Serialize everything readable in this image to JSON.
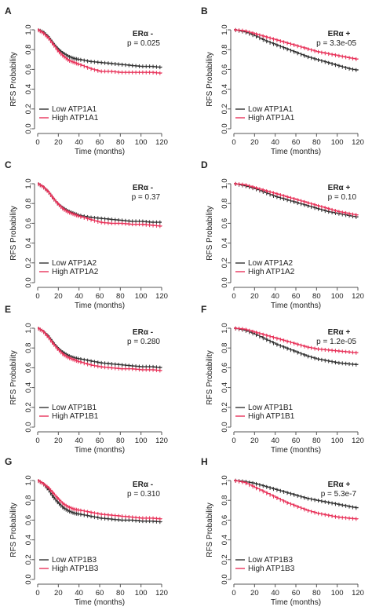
{
  "figure": {
    "colors": {
      "low": "#333333",
      "high": "#e8335a",
      "axis": "#555555"
    }
  },
  "chart_data": [
    {
      "type": "line",
      "panel": "A",
      "er_label": "ERα -",
      "p_text": "p = 0.025",
      "er_bold_plus": false,
      "xlabel": "Time (months)",
      "ylabel": "RFS Probability",
      "xlim": [
        0,
        120
      ],
      "ylim": [
        0,
        1
      ],
      "xticks": [
        "0",
        "20",
        "40",
        "60",
        "80",
        "100",
        "120"
      ],
      "yticks": [
        "0.0",
        "0.2",
        "0.4",
        "0.6",
        "0.8",
        "1.0"
      ],
      "legend_position": "bottom-left",
      "series": [
        {
          "name": "Low ATP1A1",
          "color": "#333333",
          "x": [
            0,
            5,
            10,
            15,
            20,
            25,
            30,
            35,
            40,
            50,
            60,
            70,
            80,
            90,
            100,
            110,
            120
          ],
          "y": [
            1.0,
            0.98,
            0.93,
            0.86,
            0.8,
            0.76,
            0.73,
            0.71,
            0.7,
            0.68,
            0.67,
            0.66,
            0.65,
            0.64,
            0.63,
            0.63,
            0.62
          ]
        },
        {
          "name": "High ATP1A1",
          "color": "#e8335a",
          "x": [
            0,
            5,
            10,
            15,
            20,
            25,
            30,
            35,
            40,
            50,
            60,
            70,
            80,
            90,
            100,
            110,
            120
          ],
          "y": [
            1.0,
            0.97,
            0.92,
            0.85,
            0.78,
            0.73,
            0.69,
            0.67,
            0.65,
            0.61,
            0.58,
            0.58,
            0.57,
            0.57,
            0.57,
            0.57,
            0.56
          ]
        }
      ]
    },
    {
      "type": "line",
      "panel": "B",
      "er_label": "ERα +",
      "p_text": "p = 3.3e-05",
      "er_bold_plus": true,
      "xlabel": "Time (months)",
      "ylabel": "RFS Probability",
      "xlim": [
        0,
        120
      ],
      "ylim": [
        0,
        1
      ],
      "xticks": [
        "0",
        "20",
        "40",
        "60",
        "80",
        "100",
        "120"
      ],
      "yticks": [
        "0.0",
        "0.2",
        "0.4",
        "0.6",
        "0.8",
        "1.0"
      ],
      "legend_position": "bottom-left",
      "series": [
        {
          "name": "Low ATP1A1",
          "color": "#333333",
          "x": [
            0,
            10,
            20,
            30,
            40,
            50,
            60,
            70,
            80,
            90,
            100,
            110,
            120
          ],
          "y": [
            1.0,
            0.98,
            0.94,
            0.89,
            0.85,
            0.81,
            0.77,
            0.73,
            0.7,
            0.67,
            0.64,
            0.61,
            0.59
          ]
        },
        {
          "name": "High ATP1A1",
          "color": "#e8335a",
          "x": [
            0,
            10,
            20,
            30,
            40,
            50,
            60,
            70,
            80,
            90,
            100,
            110,
            120
          ],
          "y": [
            1.0,
            0.99,
            0.96,
            0.93,
            0.9,
            0.87,
            0.84,
            0.81,
            0.78,
            0.76,
            0.74,
            0.72,
            0.7
          ]
        }
      ]
    },
    {
      "type": "line",
      "panel": "C",
      "er_label": "ERα -",
      "p_text": "p = 0.37",
      "er_bold_plus": false,
      "xlabel": "Time (months)",
      "ylabel": "RFS Probability",
      "xlim": [
        0,
        120
      ],
      "ylim": [
        0,
        1
      ],
      "xticks": [
        "0",
        "20",
        "40",
        "60",
        "80",
        "100",
        "120"
      ],
      "yticks": [
        "0.0",
        "0.2",
        "0.4",
        "0.6",
        "0.8",
        "1.0"
      ],
      "legend_position": "bottom-left",
      "series": [
        {
          "name": "Low ATP1A2",
          "color": "#333333",
          "x": [
            0,
            5,
            10,
            15,
            20,
            25,
            30,
            35,
            40,
            50,
            60,
            70,
            80,
            90,
            100,
            110,
            120
          ],
          "y": [
            1.0,
            0.97,
            0.92,
            0.85,
            0.79,
            0.75,
            0.72,
            0.7,
            0.68,
            0.66,
            0.65,
            0.64,
            0.63,
            0.62,
            0.62,
            0.61,
            0.61
          ]
        },
        {
          "name": "High ATP1A2",
          "color": "#e8335a",
          "x": [
            0,
            5,
            10,
            15,
            20,
            25,
            30,
            35,
            40,
            50,
            60,
            70,
            80,
            90,
            100,
            110,
            120
          ],
          "y": [
            1.0,
            0.97,
            0.92,
            0.85,
            0.79,
            0.74,
            0.71,
            0.69,
            0.67,
            0.64,
            0.61,
            0.6,
            0.6,
            0.59,
            0.59,
            0.58,
            0.57
          ]
        }
      ]
    },
    {
      "type": "line",
      "panel": "D",
      "er_label": "ERα +",
      "p_text": "p = 0.10",
      "er_bold_plus": true,
      "xlabel": "Time (months)",
      "ylabel": "RFS Probability",
      "xlim": [
        0,
        120
      ],
      "ylim": [
        0,
        1
      ],
      "xticks": [
        "0",
        "20",
        "40",
        "60",
        "80",
        "100",
        "120"
      ],
      "yticks": [
        "0.0",
        "0.2",
        "0.4",
        "0.6",
        "0.8",
        "1.0"
      ],
      "legend_position": "bottom-left",
      "series": [
        {
          "name": "Low ATP1A2",
          "color": "#333333",
          "x": [
            0,
            10,
            20,
            30,
            40,
            50,
            60,
            70,
            80,
            90,
            100,
            110,
            120
          ],
          "y": [
            1.0,
            0.98,
            0.95,
            0.91,
            0.87,
            0.84,
            0.81,
            0.78,
            0.75,
            0.72,
            0.7,
            0.68,
            0.66
          ]
        },
        {
          "name": "High ATP1A2",
          "color": "#e8335a",
          "x": [
            0,
            10,
            20,
            30,
            40,
            50,
            60,
            70,
            80,
            90,
            100,
            110,
            120
          ],
          "y": [
            1.0,
            0.99,
            0.96,
            0.93,
            0.9,
            0.87,
            0.84,
            0.81,
            0.78,
            0.75,
            0.72,
            0.7,
            0.68
          ]
        }
      ]
    },
    {
      "type": "line",
      "panel": "E",
      "er_label": "ERα -",
      "p_text": "p = 0.280",
      "er_bold_plus": false,
      "xlabel": "Time (months)",
      "ylabel": "RFS Probability",
      "xlim": [
        0,
        120
      ],
      "ylim": [
        0,
        1
      ],
      "xticks": [
        "0",
        "20",
        "40",
        "60",
        "80",
        "100",
        "120"
      ],
      "yticks": [
        "0.0",
        "0.2",
        "0.4",
        "0.6",
        "0.8",
        "1.0"
      ],
      "legend_position": "bottom-left",
      "series": [
        {
          "name": "Low ATP1B1",
          "color": "#333333",
          "x": [
            0,
            5,
            10,
            15,
            20,
            25,
            30,
            35,
            40,
            50,
            60,
            70,
            80,
            90,
            100,
            110,
            120
          ],
          "y": [
            1.0,
            0.97,
            0.92,
            0.85,
            0.79,
            0.75,
            0.72,
            0.7,
            0.69,
            0.67,
            0.65,
            0.64,
            0.63,
            0.62,
            0.61,
            0.61,
            0.6
          ]
        },
        {
          "name": "High ATP1B1",
          "color": "#e8335a",
          "x": [
            0,
            5,
            10,
            15,
            20,
            25,
            30,
            35,
            40,
            50,
            60,
            70,
            80,
            90,
            100,
            110,
            120
          ],
          "y": [
            1.0,
            0.97,
            0.91,
            0.84,
            0.78,
            0.73,
            0.7,
            0.68,
            0.66,
            0.63,
            0.61,
            0.6,
            0.59,
            0.59,
            0.58,
            0.58,
            0.57
          ]
        }
      ]
    },
    {
      "type": "line",
      "panel": "F",
      "er_label": "ERα +",
      "p_text": "p = 1.2e-05",
      "er_bold_plus": true,
      "xlabel": "Time (months)",
      "ylabel": "RFS Probability",
      "xlim": [
        0,
        120
      ],
      "ylim": [
        0,
        1
      ],
      "xticks": [
        "0",
        "20",
        "40",
        "60",
        "80",
        "100",
        "120"
      ],
      "yticks": [
        "0.0",
        "0.2",
        "0.4",
        "0.6",
        "0.8",
        "1.0"
      ],
      "legend_position": "bottom-left",
      "series": [
        {
          "name": "Low ATP1B1",
          "color": "#333333",
          "x": [
            0,
            10,
            20,
            30,
            40,
            50,
            60,
            70,
            80,
            90,
            100,
            110,
            120
          ],
          "y": [
            1.0,
            0.98,
            0.94,
            0.89,
            0.84,
            0.8,
            0.76,
            0.72,
            0.69,
            0.67,
            0.65,
            0.64,
            0.63
          ]
        },
        {
          "name": "High ATP1B1",
          "color": "#e8335a",
          "x": [
            0,
            10,
            20,
            30,
            40,
            50,
            60,
            70,
            80,
            90,
            100,
            110,
            120
          ],
          "y": [
            1.0,
            0.99,
            0.96,
            0.93,
            0.9,
            0.87,
            0.84,
            0.81,
            0.79,
            0.78,
            0.77,
            0.76,
            0.75
          ]
        }
      ]
    },
    {
      "type": "line",
      "panel": "G",
      "er_label": "ERα -",
      "p_text": "p = 0.310",
      "er_bold_plus": false,
      "xlabel": "Time (months)",
      "ylabel": "RFS Probability",
      "xlim": [
        0,
        120
      ],
      "ylim": [
        0,
        1
      ],
      "xticks": [
        "0",
        "20",
        "40",
        "60",
        "80",
        "100",
        "120"
      ],
      "yticks": [
        "0.0",
        "0.2",
        "0.4",
        "0.6",
        "0.8",
        "1.0"
      ],
      "legend_position": "bottom-left",
      "series": [
        {
          "name": "Low ATP1B3",
          "color": "#333333",
          "x": [
            0,
            5,
            10,
            15,
            20,
            25,
            30,
            35,
            40,
            50,
            60,
            70,
            80,
            90,
            100,
            110,
            120
          ],
          "y": [
            1.0,
            0.97,
            0.91,
            0.83,
            0.77,
            0.72,
            0.69,
            0.67,
            0.66,
            0.64,
            0.62,
            0.61,
            0.6,
            0.6,
            0.59,
            0.59,
            0.58
          ]
        },
        {
          "name": "High ATP1B3",
          "color": "#e8335a",
          "x": [
            0,
            5,
            10,
            15,
            20,
            25,
            30,
            35,
            40,
            50,
            60,
            70,
            80,
            90,
            100,
            110,
            120
          ],
          "y": [
            1.0,
            0.97,
            0.93,
            0.87,
            0.81,
            0.76,
            0.73,
            0.71,
            0.7,
            0.68,
            0.66,
            0.65,
            0.64,
            0.63,
            0.62,
            0.62,
            0.61
          ]
        }
      ]
    },
    {
      "type": "line",
      "panel": "H",
      "er_label": "ERα +",
      "p_text": "p = 5.3e-7",
      "er_bold_plus": true,
      "xlabel": "Time (months)",
      "ylabel": "RFS Probability",
      "xlim": [
        0,
        120
      ],
      "ylim": [
        0,
        1
      ],
      "xticks": [
        "0",
        "20",
        "40",
        "60",
        "80",
        "100",
        "120"
      ],
      "yticks": [
        "0.0",
        "0.2",
        "0.4",
        "0.6",
        "0.8",
        "1.0"
      ],
      "legend_position": "bottom-left",
      "series": [
        {
          "name": "Low ATP1B3",
          "color": "#333333",
          "x": [
            0,
            10,
            20,
            30,
            40,
            50,
            60,
            70,
            80,
            90,
            100,
            110,
            120
          ],
          "y": [
            1.0,
            0.99,
            0.97,
            0.94,
            0.91,
            0.88,
            0.85,
            0.82,
            0.8,
            0.78,
            0.76,
            0.74,
            0.72
          ]
        },
        {
          "name": "High ATP1B3",
          "color": "#e8335a",
          "x": [
            0,
            10,
            20,
            30,
            40,
            50,
            60,
            70,
            80,
            90,
            100,
            110,
            120
          ],
          "y": [
            1.0,
            0.98,
            0.93,
            0.88,
            0.83,
            0.78,
            0.74,
            0.7,
            0.67,
            0.65,
            0.63,
            0.62,
            0.61
          ]
        }
      ]
    }
  ]
}
